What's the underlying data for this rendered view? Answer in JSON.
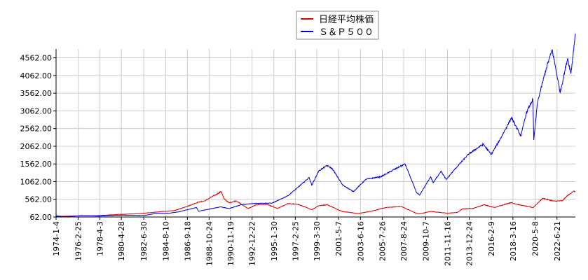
{
  "chart_data": {
    "type": "line",
    "title": "",
    "xlabel": "",
    "ylabel": "",
    "legend_position": "top-center",
    "grid": true,
    "ylim": [
      62,
      4812
    ],
    "xlim": [
      "1974-01-04",
      "2024-04-01"
    ],
    "y_ticks": [
      "62.00",
      "562.00",
      "1062.00",
      "1562.00",
      "2062.00",
      "2562.00",
      "3062.00",
      "3562.00",
      "4062.00",
      "4562.00"
    ],
    "x_ticks": [
      "1974-1-4",
      "1976-2-25",
      "1978-4-3",
      "1980-4-28",
      "1982-6-30",
      "1984-8-10",
      "1986-9-18",
      "1988-10-24",
      "1990-11-19",
      "1992-12-22",
      "1995-1-30",
      "1997-2-25",
      "1999-3-30",
      "2001-5-7",
      "2003-6-16",
      "2005-7-26",
      "2007-8-24",
      "2009-10-7",
      "2011-11-16",
      "2013-12-24",
      "2016-2-9",
      "2018-3-16",
      "2020-5-8",
      "2022-6-21"
    ],
    "series": [
      {
        "name": "日経平均株価",
        "color": "#dd0000",
        "x": [
          "1974-01-04",
          "1976-01-01",
          "1978-01-01",
          "1980-01-01",
          "1982-01-01",
          "1984-01-01",
          "1985-06-01",
          "1986-09-01",
          "1987-10-01",
          "1988-06-01",
          "1989-01-01",
          "1989-12-29",
          "1990-04-01",
          "1990-10-01",
          "1991-06-01",
          "1992-08-01",
          "1993-06-01",
          "1994-06-01",
          "1995-06-01",
          "1996-06-01",
          "1997-06-01",
          "1998-10-01",
          "1999-06-01",
          "2000-04-01",
          "2001-09-01",
          "2003-04-01",
          "2004-06-01",
          "2005-12-01",
          "2007-06-01",
          "2008-10-01",
          "2009-03-01",
          "2010-04-01",
          "2011-11-01",
          "2012-11-01",
          "2013-05-01",
          "2014-06-01",
          "2015-06-01",
          "2016-06-01",
          "2018-01-01",
          "2018-12-01",
          "2020-03-01",
          "2021-02-01",
          "2022-03-01",
          "2023-01-01",
          "2023-07-01",
          "2024-02-01",
          "2024-04-01"
        ],
        "y": [
          80,
          91,
          100,
          135,
          155,
          210,
          240,
          360,
          480,
          520,
          620,
          780,
          580,
          460,
          520,
          300,
          410,
          420,
          300,
          440,
          420,
          270,
          380,
          410,
          220,
          160,
          220,
          330,
          360,
          180,
          150,
          220,
          170,
          190,
          290,
          310,
          410,
          330,
          470,
          400,
          330,
          590,
          510,
          520,
          670,
          790,
          780
        ]
      },
      {
        "name": "Ｓ＆Ｐ５００",
        "color": "#0000dd",
        "x": [
          "1974-01-04",
          "1974-10-01",
          "1976-06-01",
          "1978-03-01",
          "1980-06-01",
          "1982-08-01",
          "1983-10-01",
          "1984-08-01",
          "1985-12-01",
          "1987-08-01",
          "1987-10-20",
          "1988-10-01",
          "1989-12-01",
          "1990-10-01",
          "1991-12-01",
          "1993-06-01",
          "1994-12-01",
          "1996-06-01",
          "1997-06-01",
          "1998-07-01",
          "1998-10-01",
          "1999-06-01",
          "2000-03-24",
          "2000-10-01",
          "2001-09-21",
          "2002-10-09",
          "2004-01-01",
          "2005-06-01",
          "2007-10-09",
          "2008-11-20",
          "2009-03-09",
          "2010-04-01",
          "2010-07-01",
          "2011-04-01",
          "2011-10-01",
          "2012-09-01",
          "2013-12-01",
          "2015-05-01",
          "2016-02-11",
          "2017-01-01",
          "2018-01-26",
          "2018-12-24",
          "2019-07-01",
          "2020-02-19",
          "2020-03-23",
          "2020-08-01",
          "2021-06-01",
          "2022-01-03",
          "2022-10-12",
          "2023-07-01",
          "2023-10-27",
          "2024-04-01"
        ],
        "y": [
          97,
          70,
          100,
          88,
          115,
          105,
          170,
          155,
          211,
          330,
          225,
          280,
          350,
          300,
          410,
          450,
          455,
          660,
          900,
          1180,
          960,
          1360,
          1520,
          1420,
          970,
          780,
          1130,
          1200,
          1565,
          750,
          680,
          1200,
          1030,
          1360,
          1120,
          1440,
          1840,
          2120,
          1830,
          2280,
          2870,
          2350,
          3000,
          3390,
          2240,
          3300,
          4250,
          4790,
          3580,
          4550,
          4120,
          5250
        ]
      }
    ]
  }
}
